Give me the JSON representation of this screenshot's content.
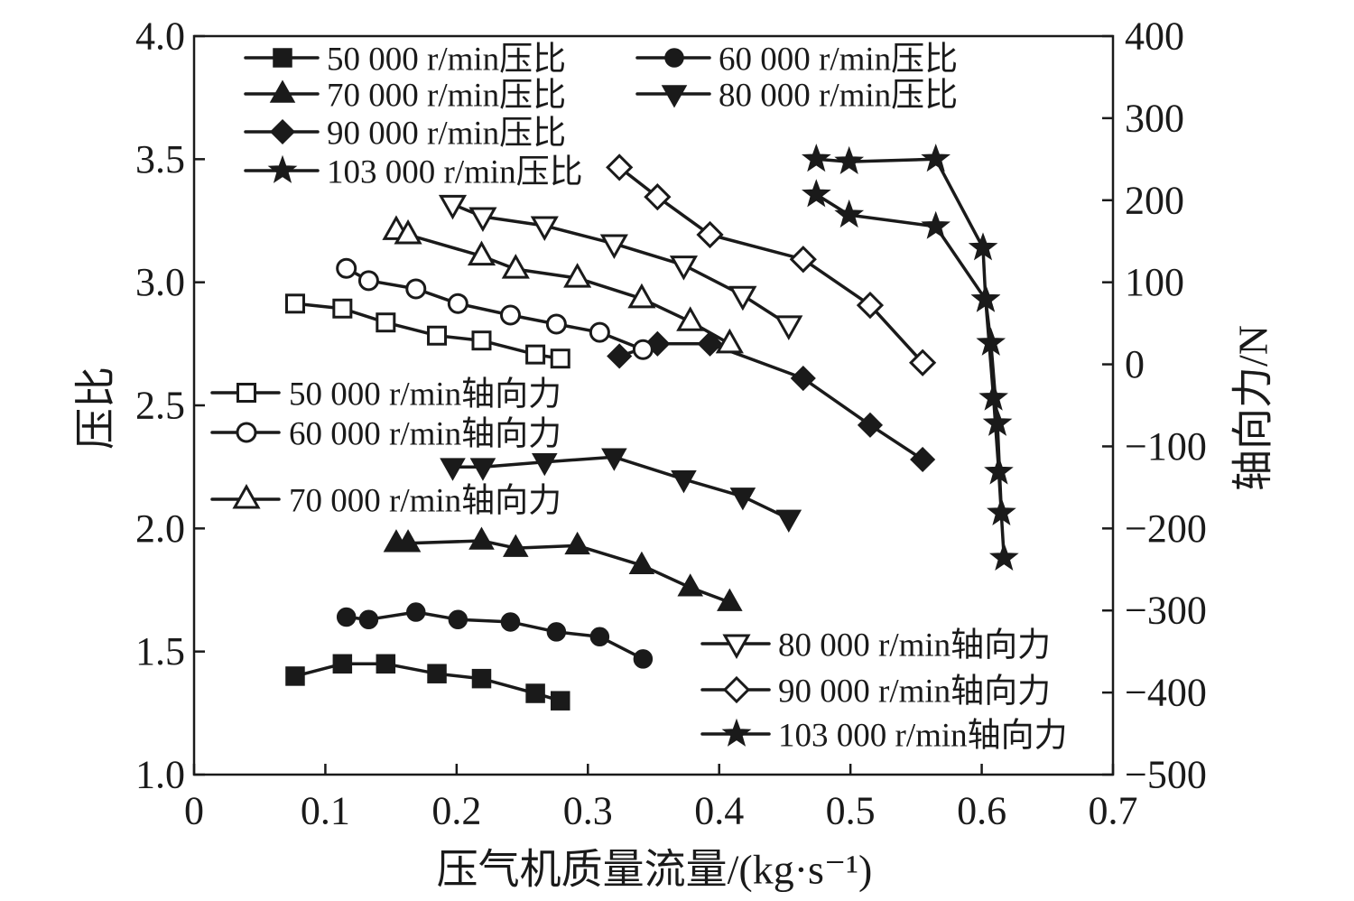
{
  "chart_data": {
    "type": "line",
    "xlabel": "压气机质量流量/(kg·s⁻¹)",
    "ylabel": "压比",
    "y2label": "轴向力/N",
    "xlim": [
      0,
      0.7
    ],
    "ylim": [
      1.0,
      4.0
    ],
    "y2lim": [
      -500,
      400
    ],
    "xticks": [
      "0",
      "0.1",
      "0.2",
      "0.3",
      "0.4",
      "0.5",
      "0.6",
      "0.7"
    ],
    "yticks": [
      "1.0",
      "1.5",
      "2.0",
      "2.5",
      "3.0",
      "3.5",
      "4.0"
    ],
    "y2ticks": [
      "−500",
      "−400",
      "−300",
      "−200",
      "−100",
      "0",
      "100",
      "200",
      "300",
      "400"
    ],
    "grid": false,
    "color": "#1a1a1a",
    "series": [
      {
        "name": "50 000 r/min压比",
        "axis": "left",
        "marker": "square",
        "marker_fill": "filled",
        "legend": "top-left",
        "x": [
          0.077,
          0.113,
          0.146,
          0.185,
          0.219,
          0.26,
          0.279
        ],
        "y": [
          1.4,
          1.45,
          1.45,
          1.41,
          1.39,
          1.33,
          1.3
        ]
      },
      {
        "name": "60 000 r/min压比",
        "axis": "left",
        "marker": "circle",
        "marker_fill": "filled",
        "legend": "top-left",
        "x": [
          0.116,
          0.133,
          0.169,
          0.201,
          0.241,
          0.276,
          0.309,
          0.342
        ],
        "y": [
          1.64,
          1.63,
          1.66,
          1.63,
          1.62,
          1.58,
          1.56,
          1.47
        ]
      },
      {
        "name": "70 000 r/min压比",
        "axis": "left",
        "marker": "triangle-up",
        "marker_fill": "filled",
        "legend": "top-left",
        "x": [
          0.154,
          0.163,
          0.219,
          0.245,
          0.292,
          0.341,
          0.378,
          0.408
        ],
        "y": [
          1.94,
          1.94,
          1.95,
          1.92,
          1.93,
          1.85,
          1.76,
          1.7
        ]
      },
      {
        "name": "80 000 r/min压比",
        "axis": "left",
        "marker": "triangle-down",
        "marker_fill": "filled",
        "legend": "top-left",
        "x": [
          0.197,
          0.22,
          0.267,
          0.32,
          0.373,
          0.418,
          0.453
        ],
        "y": [
          2.25,
          2.25,
          2.27,
          2.29,
          2.2,
          2.13,
          2.04
        ]
      },
      {
        "name": "90 000 r/min压比",
        "axis": "left",
        "marker": "diamond",
        "marker_fill": "filled",
        "legend": "top-left",
        "x": [
          0.324,
          0.353,
          0.393,
          0.464,
          0.515,
          0.555
        ],
        "y": [
          2.7,
          2.75,
          2.75,
          2.61,
          2.42,
          2.28
        ]
      },
      {
        "name": "103 000 r/min压比",
        "axis": "left",
        "marker": "star",
        "marker_fill": "filled",
        "legend": "top-left",
        "x": [
          0.474,
          0.499,
          0.565,
          0.601,
          0.603,
          0.609,
          0.613,
          0.617
        ],
        "y": [
          3.5,
          3.49,
          3.5,
          3.14,
          2.93,
          2.53,
          2.23,
          1.88
        ]
      },
      {
        "name": "50 000 r/min轴向力",
        "axis": "right",
        "marker": "square",
        "marker_fill": "open",
        "legend": "middle-left",
        "x": [
          0.077,
          0.113,
          0.146,
          0.185,
          0.219,
          0.26,
          0.279
        ],
        "y": [
          74,
          68,
          51,
          35,
          29,
          12,
          7
        ]
      },
      {
        "name": "60 000 r/min轴向力",
        "axis": "right",
        "marker": "circle",
        "marker_fill": "open",
        "legend": "middle-left",
        "x": [
          0.116,
          0.133,
          0.169,
          0.201,
          0.241,
          0.276,
          0.309,
          0.342
        ],
        "y": [
          117,
          102,
          92,
          74,
          60,
          49,
          39,
          18
        ]
      },
      {
        "name": "70 000 r/min轴向力",
        "axis": "right",
        "marker": "triangle-up",
        "marker_fill": "open",
        "legend": "middle-left",
        "x": [
          0.154,
          0.163,
          0.219,
          0.245,
          0.292,
          0.341,
          0.378,
          0.408
        ],
        "y": [
          163,
          158,
          132,
          116,
          105,
          80,
          52,
          25
        ]
      },
      {
        "name": "80 000 r/min轴向力",
        "axis": "right",
        "marker": "triangle-down",
        "marker_fill": "open",
        "legend": "bottom-right",
        "x": [
          0.197,
          0.22,
          0.267,
          0.32,
          0.373,
          0.418,
          0.453
        ],
        "y": [
          195,
          180,
          169,
          147,
          121,
          84,
          48
        ]
      },
      {
        "name": "90 000 r/min轴向力",
        "axis": "right",
        "marker": "diamond",
        "marker_fill": "open",
        "legend": "bottom-right",
        "x": [
          0.324,
          0.353,
          0.393,
          0.464,
          0.515,
          0.555
        ],
        "y": [
          240,
          204,
          158,
          128,
          72,
          2
        ]
      },
      {
        "name": "103 000 r/min轴向力",
        "axis": "right",
        "marker": "star",
        "marker_fill": "filled",
        "legend": "bottom-right",
        "x": [
          0.474,
          0.499,
          0.565,
          0.603,
          0.607,
          0.612,
          0.615
        ],
        "y": [
          207,
          182,
          168,
          79,
          26,
          -72,
          -181
        ]
      }
    ]
  }
}
